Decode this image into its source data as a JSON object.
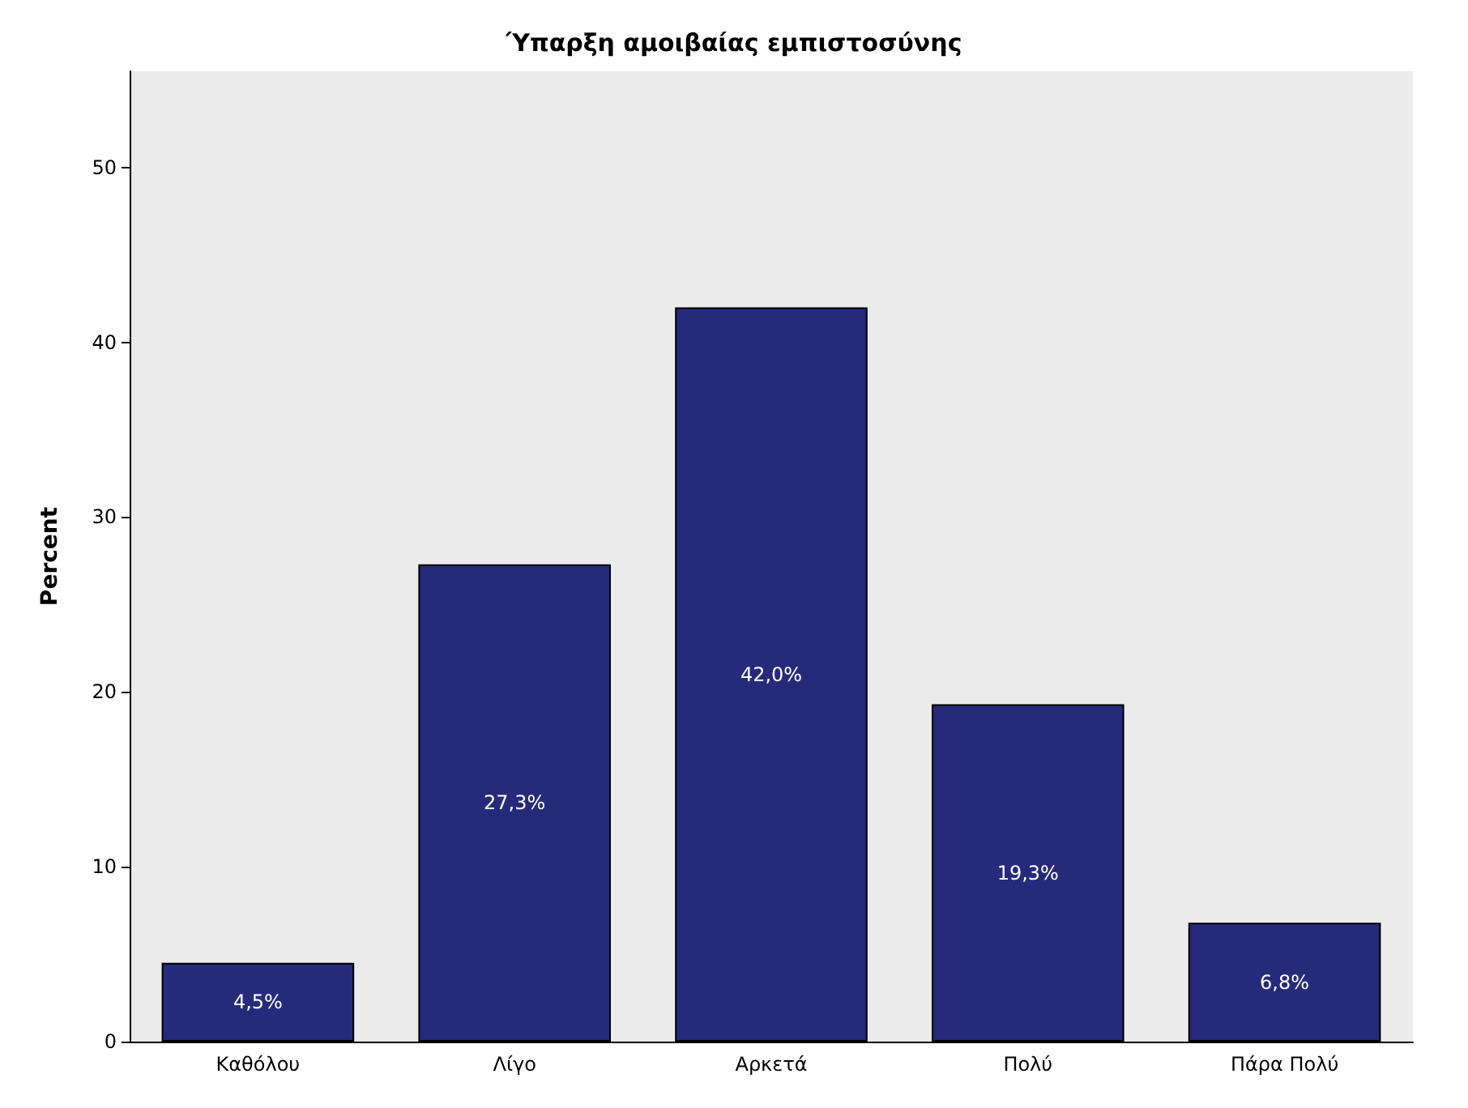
{
  "chart_data": {
    "type": "bar",
    "title": "Ύπαρξη αμοιβαίας εμπιστοσύνης",
    "ylabel": "Percent",
    "categories": [
      "Καθόλου",
      "Λίγο",
      "Αρκετά",
      "Πολύ",
      "Πάρα Πολύ"
    ],
    "values": [
      4.5,
      27.3,
      42.0,
      19.3,
      6.8
    ],
    "value_labels": [
      "4,5%",
      "27,3%",
      "42,0%",
      "19,3%",
      "6,8%"
    ],
    "color": "#262a7a",
    "ylim": [
      0,
      55.5
    ],
    "yticks": [
      0,
      10,
      20,
      30,
      40,
      50
    ]
  }
}
